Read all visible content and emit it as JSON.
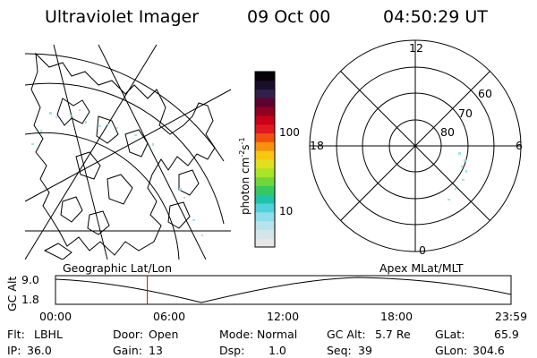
{
  "header": {
    "instrument": "Ultraviolet Imager",
    "date": "09 Oct 00",
    "time": "04:50:29 UT"
  },
  "colorbar": {
    "unit_label": "photon cm",
    "unit_exp1": "-2",
    "unit_mid": "s",
    "unit_exp2": "-1",
    "ticks": [
      {
        "value": 100,
        "label": "100"
      },
      {
        "value": 10,
        "label": "10"
      }
    ],
    "colors": [
      "#e6e6e6",
      "#d2e6ea",
      "#b8e2ec",
      "#8fdcea",
      "#4fd2dc",
      "#20c2a8",
      "#38c860",
      "#6fd838",
      "#a8e428",
      "#e0e020",
      "#f8c810",
      "#f89010",
      "#f05010",
      "#e01820",
      "#c80018",
      "#900020",
      "#600030",
      "#30204a",
      "#181028",
      "#080008"
    ]
  },
  "polar_labels": {
    "top": "12",
    "left": "18",
    "right": "6",
    "bottom": "0",
    "lat60": "60",
    "lat70": "70",
    "lat80": "80"
  },
  "map_captions": {
    "left": "Geographic Lat/Lon",
    "right": "Apex MLat/MLT"
  },
  "alt_plot": {
    "ylabel": "GC Alt",
    "y_ticks": [
      "9.0",
      "1.8"
    ],
    "x_ticks": [
      "00:00",
      "06:00",
      "12:00",
      "18:00",
      "23:59"
    ],
    "marker_hour": 4.84,
    "marker_color": "#cc0000"
  },
  "status": {
    "row1": [
      {
        "key": "Flt:",
        "value": "LBHL"
      },
      {
        "key": "Door:",
        "value": "Open"
      },
      {
        "key": "Mode:",
        "value": "Normal"
      },
      {
        "key": "GC Alt:",
        "value": "5.7 Re"
      },
      {
        "key": "GLat:",
        "value": "65.9"
      }
    ],
    "row2": [
      {
        "key": "IP:",
        "value": "36.0"
      },
      {
        "key": "Gain:",
        "value": "13"
      },
      {
        "key": "Dsp:",
        "value": "1.0"
      },
      {
        "key": "Seq:",
        "value": "39"
      },
      {
        "key": "GLon:",
        "value": "304.6"
      }
    ]
  }
}
